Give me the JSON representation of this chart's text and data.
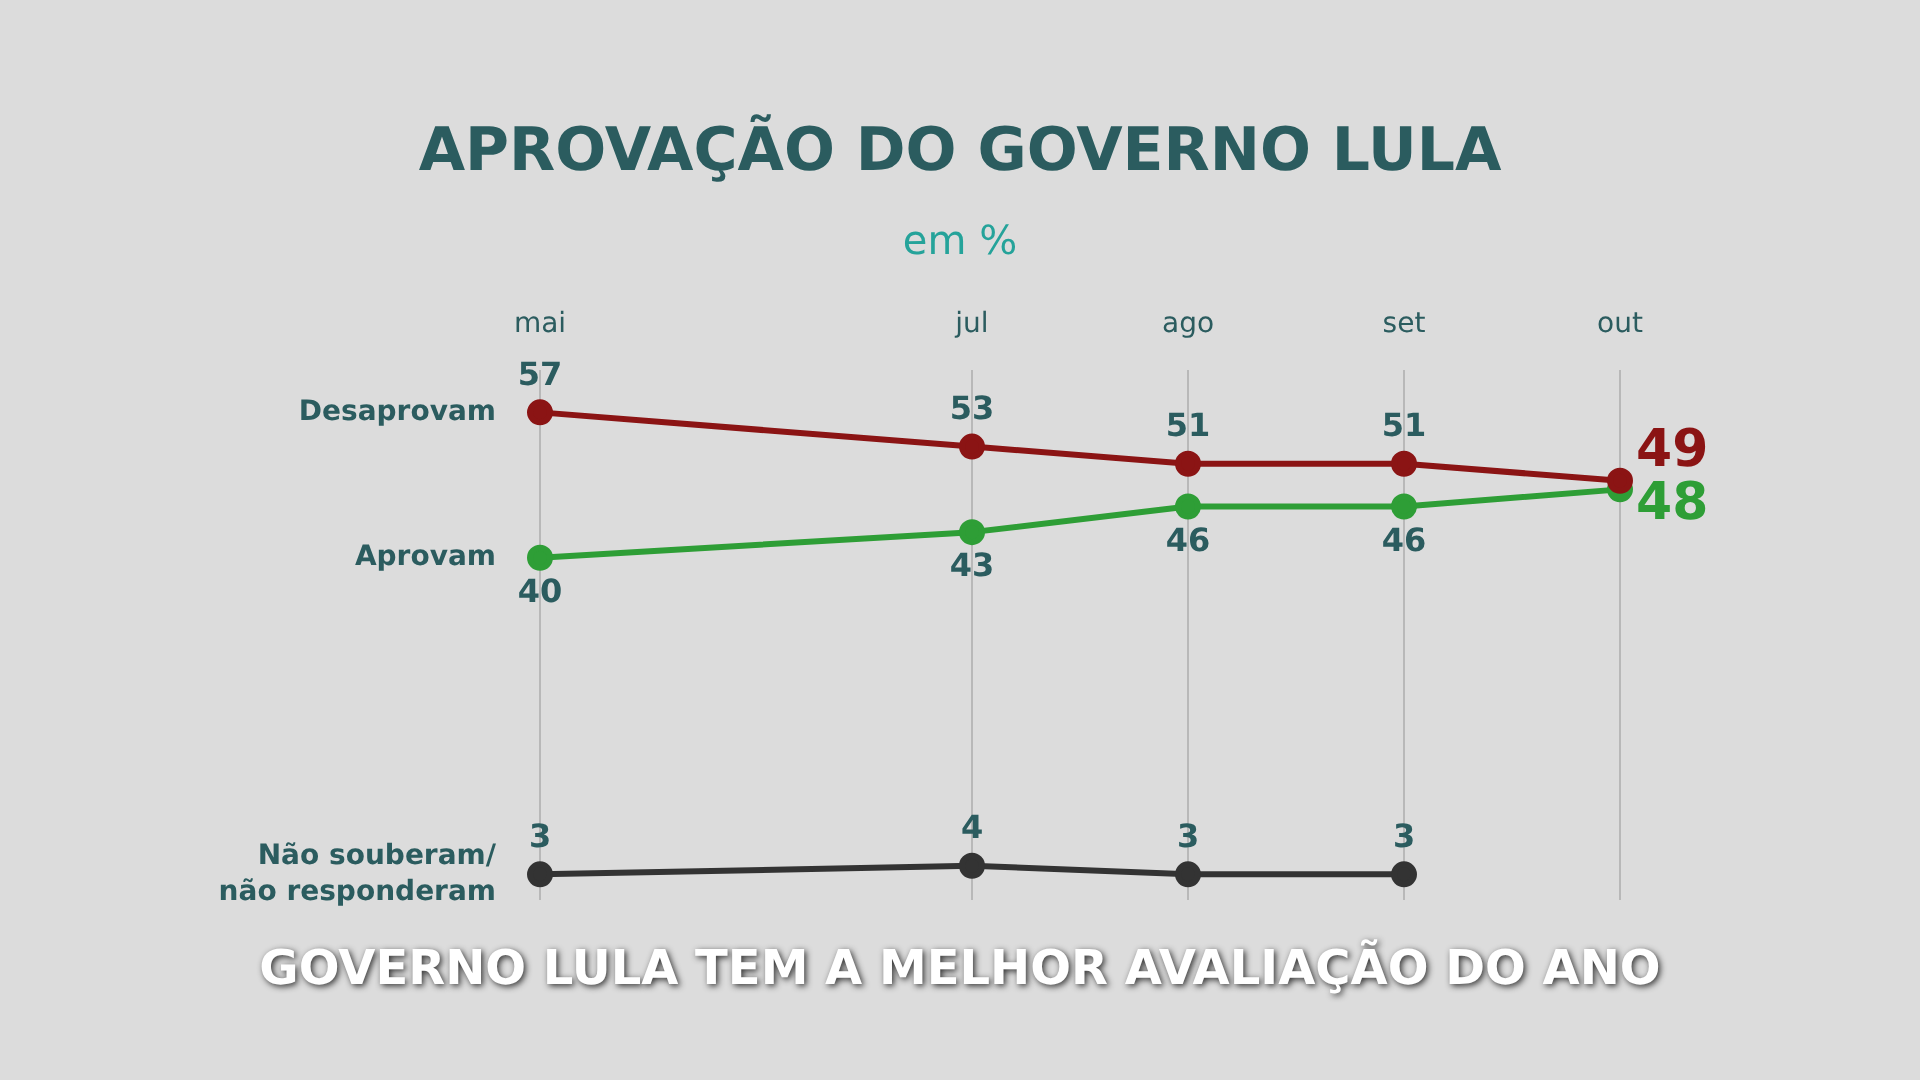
{
  "chart_data": {
    "type": "line",
    "title": "APROVAÇÃO DO GOVERNO LULA",
    "subtitle": "em %",
    "categories": [
      "mai",
      null,
      "jul",
      "ago",
      "set",
      "out"
    ],
    "series": [
      {
        "name": "Desaprovam",
        "color": "#8b1414",
        "values": [
          57,
          null,
          53,
          51,
          51,
          49
        ]
      },
      {
        "name": "Aprovam",
        "color": "#2e9e36",
        "values": [
          40,
          null,
          43,
          46,
          46,
          48
        ]
      },
      {
        "name": "Não souberam/ não responderam",
        "color": "#333333",
        "values": [
          3,
          null,
          4,
          3,
          3,
          null
        ]
      }
    ],
    "ylim": [
      0,
      62
    ],
    "data_labels": true,
    "marker": "circle",
    "line_style": "solid",
    "grid": "x",
    "legend": "left",
    "tick_labels": "x",
    "annotations": [
      "GOVERNO LULA TEM A MELHOR AVALIAÇÃO DO ANO"
    ]
  }
}
